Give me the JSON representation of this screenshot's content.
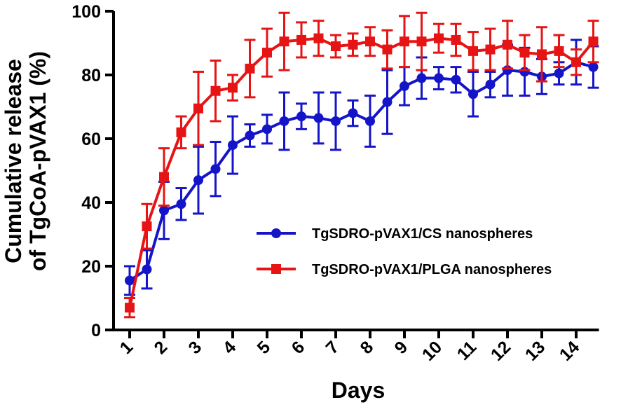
{
  "chart_data": {
    "type": "line",
    "title": "",
    "xlabel": "Days",
    "ylabel": [
      "Cumulative release",
      "of TgCoA-pVAX1 (%)"
    ],
    "xlim": [
      1,
      14.5
    ],
    "ylim": [
      0,
      100
    ],
    "yticks": [
      0,
      20,
      40,
      60,
      80,
      100
    ],
    "xticks": [
      1,
      2,
      3,
      4,
      5,
      6,
      7,
      8,
      9,
      10,
      11,
      12,
      13,
      14
    ],
    "xtick_labels": [
      "1",
      "2",
      "3",
      "4",
      "5",
      "6",
      "7",
      "8",
      "9",
      "10",
      "11",
      "12",
      "13",
      "14"
    ],
    "grid": false,
    "legend_position": "center-right",
    "x": [
      1,
      1.5,
      2,
      2.5,
      3,
      3.5,
      4,
      4.5,
      5,
      5.5,
      6,
      6.5,
      7,
      7.5,
      8,
      8.5,
      9,
      9.5,
      10,
      10.5,
      11,
      11.5,
      12,
      12.5,
      13,
      13.5,
      14,
      14.5
    ],
    "series": [
      {
        "name": "TgSDRO-pVAX1/CS nanospheres",
        "color": "#1414c8",
        "marker": "circle",
        "values": [
          15.5,
          19,
          37.5,
          39.5,
          47,
          50.5,
          58,
          61,
          63,
          65.5,
          67,
          66.5,
          65.5,
          68,
          65.5,
          71.5,
          76.5,
          79,
          79,
          78.5,
          74,
          77,
          81.5,
          81,
          79.5,
          80.5,
          84,
          82.5
        ],
        "errors": [
          4.5,
          6,
          9,
          5,
          10.5,
          8.5,
          9,
          3.5,
          4.5,
          9,
          4,
          8,
          9,
          4,
          8,
          10,
          6,
          6.5,
          3.5,
          4,
          7,
          4,
          8,
          7.5,
          5.5,
          3.5,
          7,
          6.5
        ]
      },
      {
        "name": "TgSDRO-pVAX1/PLGA nanospheres",
        "color": "#e61414",
        "marker": "square",
        "values": [
          7,
          32.5,
          48,
          62,
          69.5,
          75,
          76,
          82,
          87,
          90.5,
          91,
          91.5,
          89,
          89.5,
          90.5,
          88,
          90.5,
          90.5,
          91.5,
          91,
          87.5,
          88,
          89.5,
          87,
          86.5,
          87.5,
          84,
          90.5
        ],
        "errors": [
          3,
          7,
          9,
          5,
          11.5,
          9.5,
          4,
          9,
          7.5,
          9,
          5.5,
          5.5,
          3.5,
          3.5,
          4.5,
          6,
          8,
          9,
          4.5,
          5,
          6,
          6.5,
          7.5,
          5.5,
          8.5,
          5,
          4,
          6.5
        ]
      }
    ]
  }
}
